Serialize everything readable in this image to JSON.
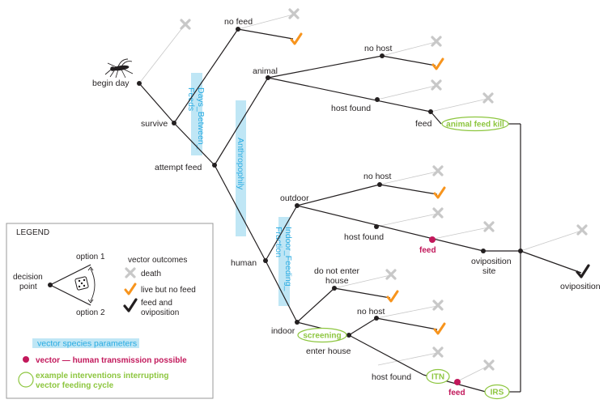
{
  "tree": {
    "begin_day": "begin day",
    "survive": "survive",
    "no_feed": "no feed",
    "attempt_feed": "attempt feed",
    "animal": "animal",
    "no_host_animal": "no host",
    "host_found_animal": "host found",
    "feed_animal": "feed",
    "animal_feed_kill": "animal feed kill",
    "human": "human",
    "outdoor": "outdoor",
    "no_host_outdoor": "no host",
    "host_found_outdoor": "host found",
    "feed_outdoor": "feed",
    "oviposition_site_line1": "oviposition",
    "oviposition_site_line2": "site",
    "oviposition": "oviposition",
    "indoor": "indoor",
    "do_not_enter_line1": "do not enter",
    "do_not_enter_line2": "house",
    "screening": "screening",
    "enter_house": "enter house",
    "no_host_indoor": "no host",
    "host_found_indoor": "host found",
    "itn": "ITN",
    "feed_indoor": "feed",
    "irs": "IRS"
  },
  "parameters": {
    "days_between_feeds_line1": "Days_Between_",
    "days_between_feeds_line2": "Feeds",
    "anthropophily": "Anthropophily",
    "indoor_feeding_line1": "Indoor_Feeding_",
    "indoor_feeding_line2": "Fraction"
  },
  "legend": {
    "title": "LEGEND",
    "option1": "option 1",
    "option2": "option 2",
    "decision_line1": "decision",
    "decision_line2": "point",
    "vector_outcomes": "vector outcomes",
    "death": "death",
    "live_no_feed": "live but no feed",
    "feed_ovi_line1": "feed and",
    "feed_ovi_line2": "oviposition",
    "species_params": "vector species parameters",
    "transmission": "vector — human transmission possible",
    "interventions_line1": "example interventions interrupting",
    "interventions_line2": "vector feeding cycle"
  },
  "icons": {
    "death": "x-cross-icon",
    "live_no_feed": "orange-check-icon",
    "feed_oviposition": "black-check-icon",
    "decision": "dice-icon",
    "mosquito": "mosquito-icon"
  },
  "colors": {
    "parameter_fill": "#bfe6f5",
    "parameter_text": "#27aae1",
    "intervention": "#8dc63f",
    "transmission": "#c2185b",
    "death_x": "#c8c8c8",
    "live_check": "#f7941d",
    "feed_check": "#231f20"
  }
}
